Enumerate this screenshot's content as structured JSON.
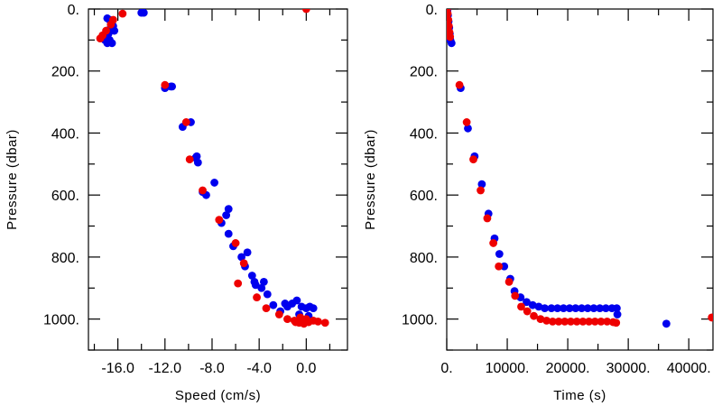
{
  "chart_data": [
    {
      "type": "scatter",
      "xlabel": "Speed (cm/s)",
      "ylabel": "Pressure (dbar)",
      "xlim": [
        -18.5,
        3.5
      ],
      "ylim": [
        0,
        1100
      ],
      "y_inverted": true,
      "x_ticks": [
        -16.0,
        -12.0,
        -8.0,
        -4.0,
        0.0
      ],
      "x_tick_labels": [
        "-16.0",
        "-12.0",
        "-8.0",
        "-4.0",
        "0.0"
      ],
      "y_ticks": [
        0,
        200,
        400,
        600,
        800,
        1000
      ],
      "y_tick_labels": [
        "0.",
        "200.",
        "400.",
        "600.",
        "800.",
        "1000."
      ],
      "grid": false,
      "series": [
        {
          "color": "#0000ee",
          "points": [
            [
              -16.9,
              30
            ],
            [
              -16.7,
              35
            ],
            [
              -16.5,
              40
            ],
            [
              -16.4,
              55
            ],
            [
              -16.3,
              70
            ],
            [
              -16.6,
              60
            ],
            [
              -16.8,
              80
            ],
            [
              -17.0,
              95
            ],
            [
              -16.7,
              100
            ],
            [
              -16.5,
              110
            ],
            [
              -16.9,
              110
            ],
            [
              -17.1,
              100
            ],
            [
              -14.0,
              12
            ],
            [
              -13.8,
              12
            ],
            [
              -12.0,
              255
            ],
            [
              -11.5,
              250
            ],
            [
              -11.4,
              250
            ],
            [
              -10.5,
              380
            ],
            [
              -9.8,
              365
            ],
            [
              -9.4,
              480
            ],
            [
              -9.2,
              495
            ],
            [
              -9.3,
              475
            ],
            [
              -8.8,
              590
            ],
            [
              -8.5,
              600
            ],
            [
              -7.8,
              560
            ],
            [
              -7.2,
              690
            ],
            [
              -6.8,
              665
            ],
            [
              -6.6,
              645
            ],
            [
              -6.6,
              725
            ],
            [
              -6.2,
              765
            ],
            [
              -5.5,
              800
            ],
            [
              -5.2,
              830
            ],
            [
              -5.0,
              785
            ],
            [
              -4.6,
              860
            ],
            [
              -4.3,
              890
            ],
            [
              -4.4,
              880
            ],
            [
              -3.8,
              900
            ],
            [
              -3.6,
              880
            ],
            [
              -3.3,
              920
            ],
            [
              -2.8,
              955
            ],
            [
              -2.2,
              975
            ],
            [
              -1.8,
              950
            ],
            [
              -1.6,
              960
            ],
            [
              -1.2,
              950
            ],
            [
              -0.8,
              940
            ],
            [
              -0.4,
              960
            ],
            [
              0.0,
              965
            ],
            [
              0.3,
              960
            ],
            [
              0.6,
              965
            ],
            [
              -0.6,
              985
            ],
            [
              0.2,
              990
            ]
          ]
        },
        {
          "color": "#ee0000",
          "points": [
            [
              -17.3,
              85
            ],
            [
              -17.0,
              70
            ],
            [
              -16.6,
              50
            ],
            [
              -16.4,
              35
            ],
            [
              -17.5,
              95
            ],
            [
              -15.6,
              15
            ],
            [
              0.0,
              0
            ],
            [
              -12.0,
              245
            ],
            [
              -10.2,
              365
            ],
            [
              -9.9,
              485
            ],
            [
              -8.8,
              585
            ],
            [
              -7.4,
              680
            ],
            [
              -6.0,
              755
            ],
            [
              -5.3,
              820
            ],
            [
              -5.8,
              885
            ],
            [
              -4.2,
              930
            ],
            [
              -3.4,
              965
            ],
            [
              -2.3,
              985
            ],
            [
              -1.6,
              1000
            ],
            [
              -1.0,
              1005
            ],
            [
              -0.9,
              1010
            ],
            [
              -0.6,
              1012
            ],
            [
              -0.2,
              1015
            ],
            [
              0.2,
              1010
            ],
            [
              0.6,
              1005
            ],
            [
              1.0,
              1008
            ],
            [
              1.6,
              1012
            ],
            [
              -0.5,
              995
            ],
            [
              0.0,
              1000
            ]
          ]
        }
      ]
    },
    {
      "type": "scatter",
      "xlabel": "Time (s)",
      "ylabel": "Pressure (dbar)",
      "xlim": [
        0,
        44000
      ],
      "ylim": [
        0,
        1100
      ],
      "y_inverted": true,
      "x_ticks": [
        0,
        10000,
        20000,
        30000,
        40000
      ],
      "x_tick_labels": [
        "0.",
        "10000.",
        "20000.",
        "30000.",
        "40000."
      ],
      "y_ticks": [
        0,
        200,
        400,
        600,
        800,
        1000
      ],
      "y_tick_labels": [
        "0.",
        "200.",
        "400.",
        "600.",
        "800.",
        "1000."
      ],
      "grid": false,
      "series": [
        {
          "color": "#0000ee",
          "points": [
            [
              100,
              5
            ],
            [
              200,
              20
            ],
            [
              300,
              40
            ],
            [
              400,
              60
            ],
            [
              500,
              80
            ],
            [
              600,
              100
            ],
            [
              800,
              110
            ],
            [
              2300,
              255
            ],
            [
              3500,
              385
            ],
            [
              4600,
              475
            ],
            [
              5800,
              565
            ],
            [
              6900,
              660
            ],
            [
              7900,
              740
            ],
            [
              8700,
              790
            ],
            [
              9500,
              830
            ],
            [
              10500,
              870
            ],
            [
              11200,
              910
            ],
            [
              12200,
              930
            ],
            [
              13200,
              945
            ],
            [
              14200,
              955
            ],
            [
              15200,
              960
            ],
            [
              16200,
              965
            ],
            [
              17300,
              965
            ],
            [
              18300,
              965
            ],
            [
              19300,
              965
            ],
            [
              20300,
              965
            ],
            [
              21300,
              965
            ],
            [
              22300,
              965
            ],
            [
              23300,
              965
            ],
            [
              24300,
              965
            ],
            [
              25300,
              965
            ],
            [
              26300,
              965
            ],
            [
              27300,
              965
            ],
            [
              28100,
              965
            ],
            [
              28200,
              985
            ],
            [
              36300,
              1015
            ]
          ]
        },
        {
          "color": "#ee0000",
          "points": [
            [
              50,
              0
            ],
            [
              150,
              15
            ],
            [
              250,
              35
            ],
            [
              350,
              55
            ],
            [
              450,
              75
            ],
            [
              550,
              90
            ],
            [
              2100,
              245
            ],
            [
              3300,
              365
            ],
            [
              4400,
              485
            ],
            [
              5600,
              585
            ],
            [
              6700,
              675
            ],
            [
              7700,
              755
            ],
            [
              8600,
              830
            ],
            [
              10300,
              880
            ],
            [
              11300,
              925
            ],
            [
              12300,
              960
            ],
            [
              13300,
              975
            ],
            [
              14400,
              990
            ],
            [
              15500,
              1000
            ],
            [
              16500,
              1005
            ],
            [
              17500,
              1008
            ],
            [
              18500,
              1008
            ],
            [
              19500,
              1008
            ],
            [
              20500,
              1008
            ],
            [
              21500,
              1008
            ],
            [
              22500,
              1008
            ],
            [
              23500,
              1008
            ],
            [
              24500,
              1008
            ],
            [
              25500,
              1008
            ],
            [
              26500,
              1008
            ],
            [
              27500,
              1010
            ],
            [
              28000,
              1012
            ],
            [
              43800,
              995
            ]
          ]
        }
      ]
    }
  ]
}
